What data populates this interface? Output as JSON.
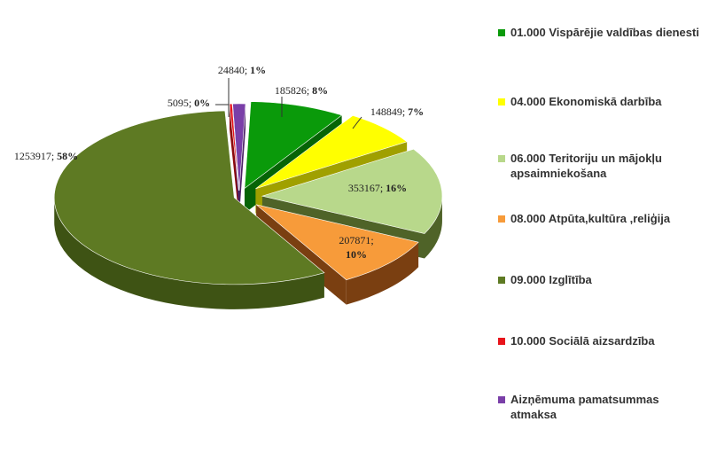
{
  "chart_data": {
    "type": "pie",
    "title": "",
    "legend_position": "right",
    "slices": [
      {
        "label": "01.000 Vispārējie valdības dienesti",
        "value": 185826,
        "percent_label": "8%",
        "color": "#0a9a0a",
        "side_color": "#066406"
      },
      {
        "label": "04.000 Ekonomiskā darbība",
        "value": 148849,
        "percent_label": "7%",
        "color": "#ffff00",
        "side_color": "#a0a000"
      },
      {
        "label": "06.000 Teritoriju un mājokļu apsaimniekošana",
        "value": 353167,
        "percent_label": "16%",
        "color": "#b8d88b",
        "side_color": "#4f6328"
      },
      {
        "label": "08.000 Atpūta,kultūra ,reliģija",
        "value": 207871,
        "percent_label": "10%",
        "color": "#f79b3a",
        "side_color": "#7a3f11"
      },
      {
        "label": "09.000 Izglītība",
        "value": 1253917,
        "percent_label": "58%",
        "color": "#5e7a23",
        "side_color": "#3e5314"
      },
      {
        "label": "10.000 Sociālā aizsardzība",
        "value": 5095,
        "percent_label": "0%",
        "color": "#e8141b",
        "side_color": "#8c0a0e"
      },
      {
        "label": "Aizņēmuma pamatsummas atmaksa",
        "value": 24840,
        "percent_label": "1%",
        "color": "#7a3fa8",
        "side_color": "#4a2266"
      }
    ]
  }
}
